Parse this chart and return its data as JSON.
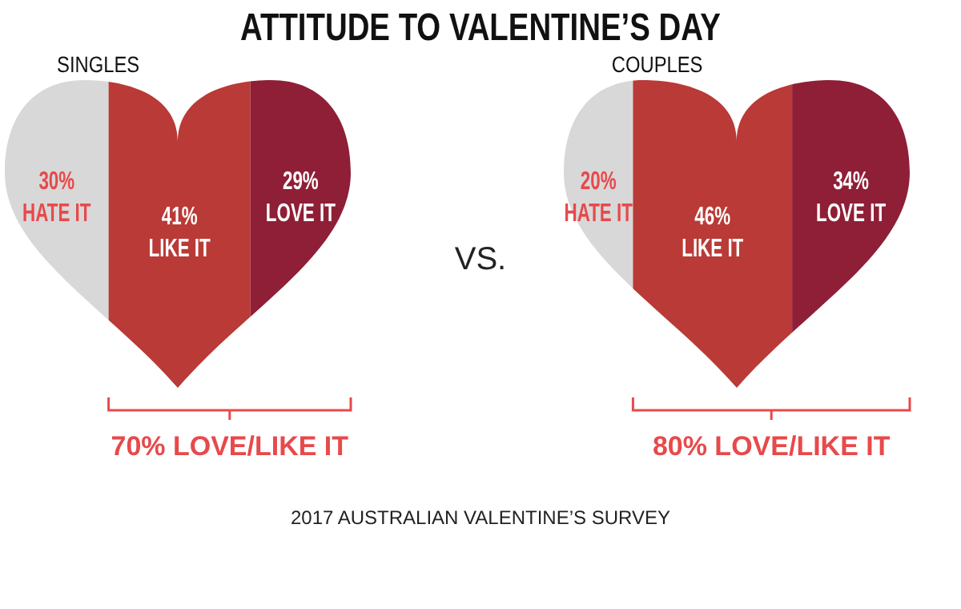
{
  "chart_data": [
    {
      "type": "other",
      "title": "ATTITUDE TO VALENTINE’S DAY",
      "annotations": [
        "VS.",
        "2017 AUSTRALIAN VALENTINE’S SURVEY"
      ]
    },
    {
      "type": "other",
      "title": "SINGLES",
      "categories": [
        "HATE IT",
        "LIKE IT",
        "LOVE IT"
      ],
      "values": [
        30,
        41,
        29
      ],
      "value_labels": [
        "30%",
        "41%",
        "29%"
      ],
      "colors": [
        "#d8d8d8",
        "#b93a36",
        "#8e1f36"
      ],
      "annotations": [
        "70% LOVE/LIKE IT"
      ]
    },
    {
      "type": "other",
      "title": "COUPLES",
      "categories": [
        "HATE IT",
        "LIKE IT",
        "LOVE IT"
      ],
      "values": [
        20,
        46,
        34
      ],
      "value_labels": [
        "20%",
        "46%",
        "34%"
      ],
      "colors": [
        "#d8d8d8",
        "#b93a36",
        "#8e1f36"
      ],
      "annotations": [
        "80% LOVE/LIKE IT"
      ]
    }
  ]
}
